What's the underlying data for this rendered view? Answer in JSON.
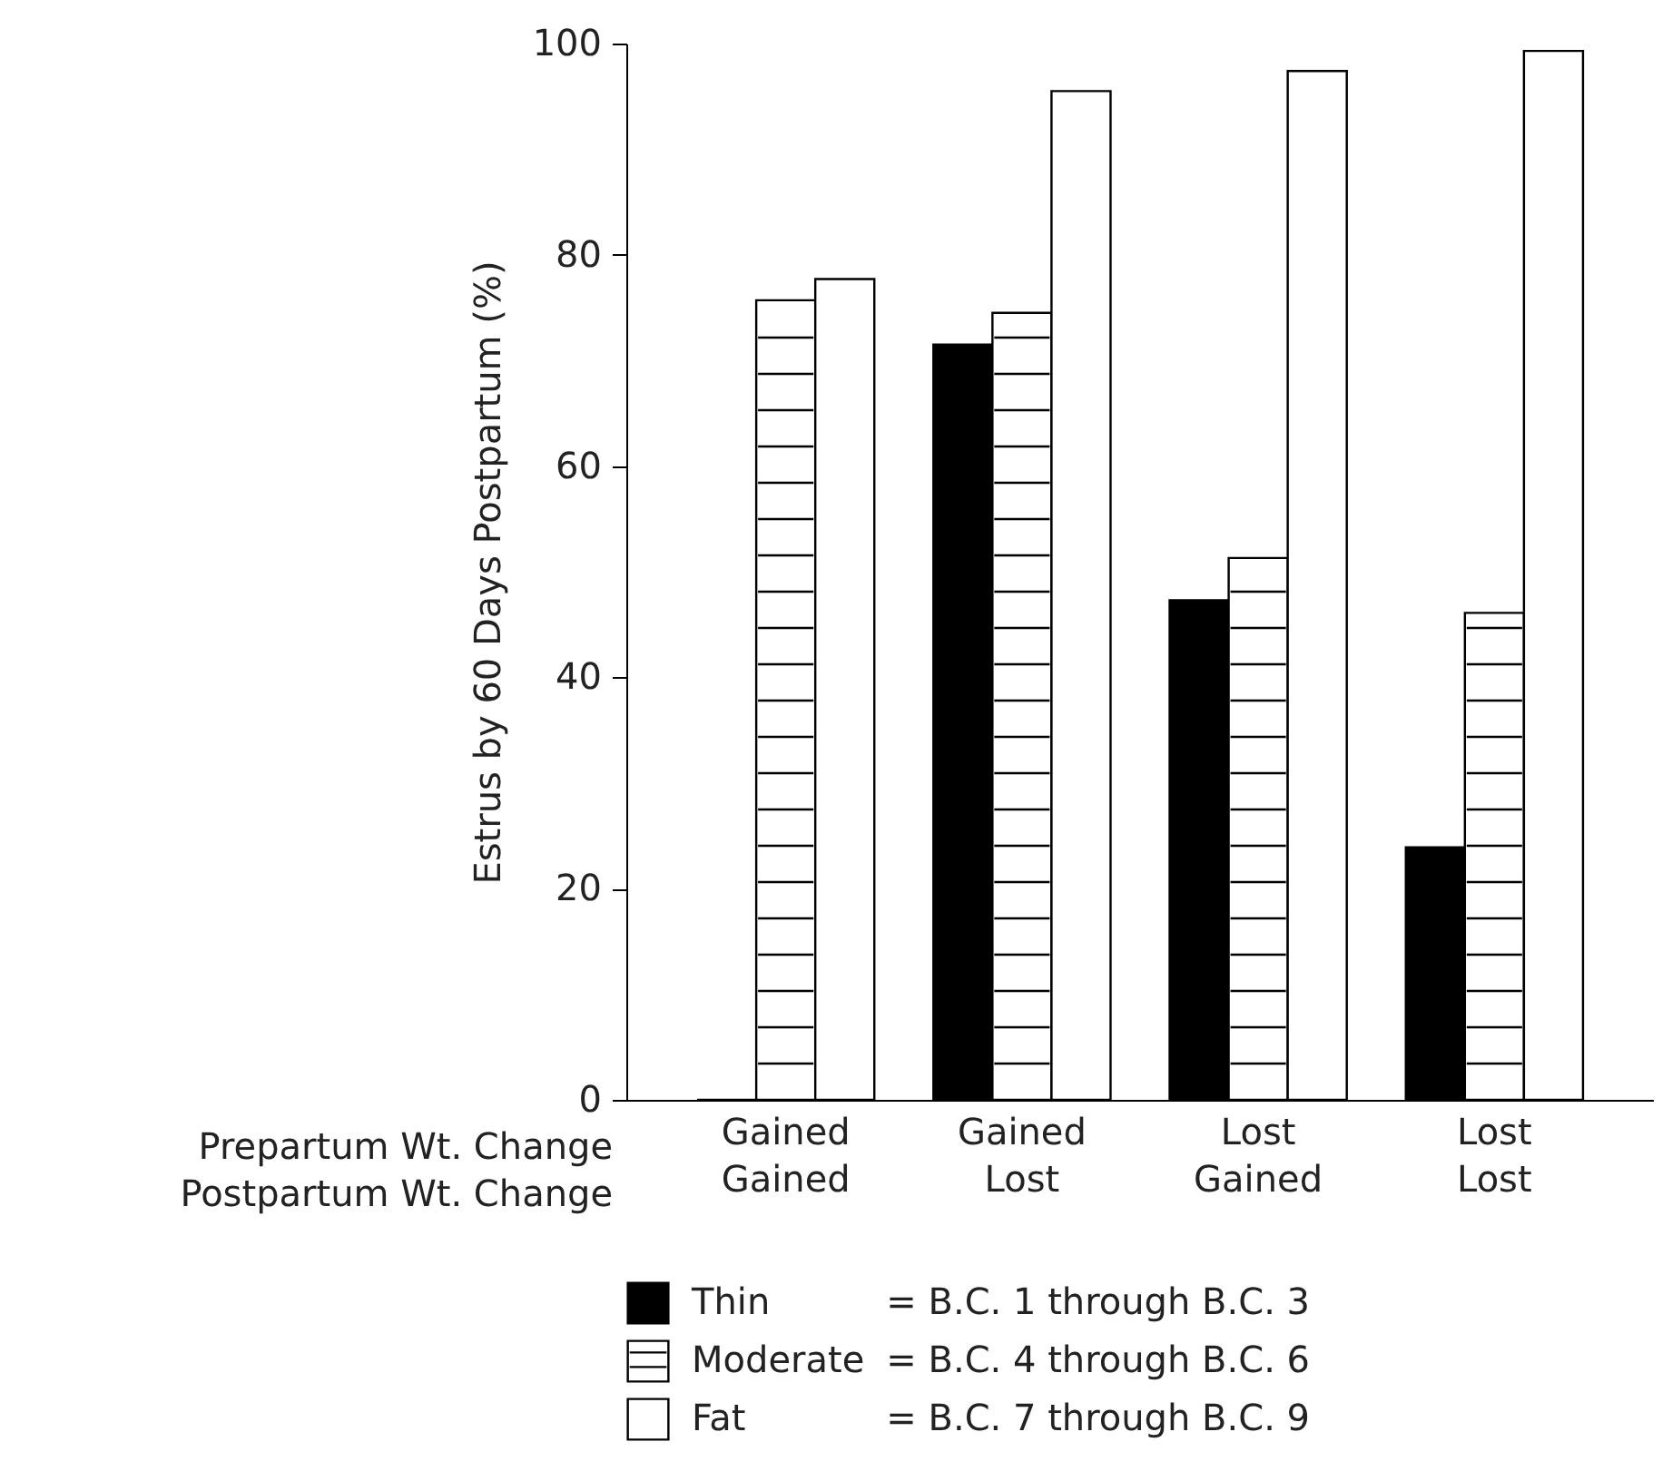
{
  "chart_data": {
    "type": "bar",
    "ylabel": "Estrus by 60 Days Postpartum (%)",
    "xlabel": "Prepartum Wt. Change\nPostpartum Wt. Change",
    "categories": [
      "Gained\nGained",
      "Gained\nLost",
      "Lost\nGained",
      "Lost\nLost"
    ],
    "series": [
      {
        "name": "Thin",
        "color": "#000000",
        "values": [
          0,
          71.5,
          47.3,
          23.9
        ]
      },
      {
        "name": "Moderate",
        "color": "#ffffff",
        "values": [
          75.7,
          74.5,
          51.3,
          46.1
        ]
      },
      {
        "name": "Fat",
        "color": "#ffffff",
        "values": [
          77.7,
          95.5,
          97.4,
          99.3
        ]
      }
    ],
    "annotations": [
      "= B.C. 1 through B.C. 3",
      "= B.C. 4 through B.C. 6",
      "= B.C. 7 through B.C. 9"
    ],
    "ylim": [
      0,
      100
    ],
    "yticks": [
      0,
      20,
      40,
      60,
      80,
      100
    ],
    "grid": false,
    "legend": "bottom"
  }
}
